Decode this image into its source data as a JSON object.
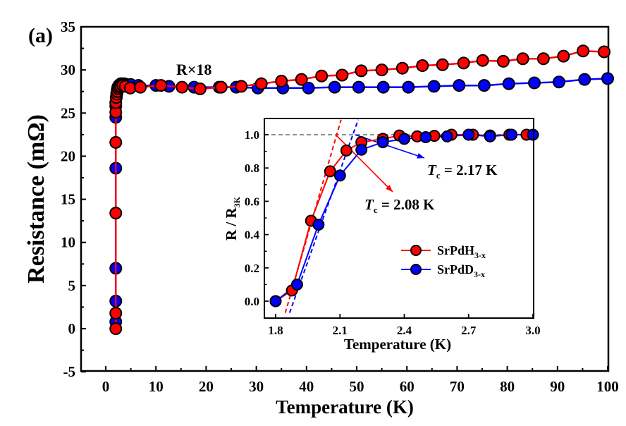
{
  "panel_label": "(a)",
  "colors": {
    "red": "#ff0000",
    "blue": "#0000ff",
    "gray": "#808080",
    "marker_edge": "#000000"
  },
  "chart_data": [
    {
      "type": "line",
      "title": "",
      "xlabel": "Temperature (K)",
      "ylabel": "Resistance (mΩ)",
      "xlim": [
        -5,
        100
      ],
      "ylim": [
        -5,
        35
      ],
      "xticks": [
        "0",
        "10",
        "20",
        "30",
        "40",
        "50",
        "60",
        "70",
        "80",
        "90",
        "100"
      ],
      "yticks": [
        "-5",
        "0",
        "5",
        "10",
        "15",
        "20",
        "25",
        "30",
        "35"
      ],
      "annotation": "R×18",
      "series": [
        {
          "name": "SrPdD3-x (R×18)",
          "color": "blue",
          "x": [
            2.0,
            2.0,
            2.0,
            2.0,
            2.0,
            2.0,
            2.1,
            2.2,
            2.3,
            2.4,
            2.6,
            2.8,
            3.0,
            3.3,
            3.7,
            4.2,
            5.0,
            6.5,
            10.0,
            12.6,
            17.6,
            22.6,
            26.0,
            30.3,
            35.3,
            40.4,
            45.6,
            50.4,
            55.3,
            60.3,
            65.4,
            70.4,
            75.4,
            80.3,
            85.4,
            90.3,
            95.4,
            100.0
          ],
          "y": [
            0.8,
            3.2,
            7.0,
            18.6,
            24.5,
            25.8,
            26.8,
            27.3,
            27.7,
            28.0,
            28.2,
            28.3,
            28.4,
            28.4,
            28.4,
            28.3,
            28.3,
            28.2,
            28.2,
            28.1,
            28.0,
            28.0,
            28.0,
            27.9,
            27.9,
            27.9,
            28.0,
            28.0,
            28.0,
            28.0,
            28.1,
            28.2,
            28.2,
            28.4,
            28.5,
            28.6,
            28.9,
            29.0
          ]
        },
        {
          "name": "SrPdH3-x",
          "color": "red",
          "x": [
            2.0,
            2.0,
            2.0,
            2.0,
            2.0,
            2.0,
            2.1,
            2.2,
            2.3,
            2.5,
            2.7,
            3.0,
            3.4,
            3.9,
            4.9,
            6.9,
            11.0,
            15.2,
            18.8,
            23.0,
            27.0,
            31.0,
            35.0,
            39.0,
            43.0,
            47.1,
            50.9,
            55.0,
            59.1,
            63.1,
            67.1,
            71.3,
            75.1,
            79.2,
            83.1,
            87.2,
            91.2,
            95.1,
            99.3
          ],
          "y": [
            0.0,
            1.8,
            13.4,
            21.6,
            25.1,
            26.2,
            26.8,
            27.2,
            27.5,
            27.8,
            28.0,
            28.1,
            28.2,
            28.1,
            27.9,
            28.0,
            28.2,
            28.0,
            27.8,
            28.0,
            28.1,
            28.4,
            28.7,
            28.9,
            29.3,
            29.4,
            29.9,
            30.0,
            30.2,
            30.5,
            30.6,
            30.8,
            31.1,
            31.0,
            31.3,
            31.3,
            31.6,
            32.2,
            32.1
          ]
        }
      ]
    },
    {
      "type": "line",
      "title": "",
      "xlabel": "Temperature (K)",
      "ylabel": "R / R",
      "ylabel_sub": "3K",
      "xlim": [
        1.75,
        3.0
      ],
      "ylim": [
        -0.08,
        1.09
      ],
      "xticks": [
        "1.8",
        "2.1",
        "2.4",
        "2.7",
        "3.0"
      ],
      "yticks": [
        "0.0",
        "0.2",
        "0.4",
        "0.6",
        "0.8",
        "1.0"
      ],
      "legend": {
        "position": "lower-right",
        "entries": [
          {
            "base": "SrPdH",
            "sub": "3-x",
            "color": "red"
          },
          {
            "base": "SrPdD",
            "sub": "3-x",
            "color": "blue"
          }
        ]
      },
      "annotations": [
        {
          "symbol": "T",
          "sub": "c",
          "text": " = 2.08 K",
          "color": "red",
          "tc": 2.08
        },
        {
          "symbol": "T",
          "sub": "c",
          "text": " = 2.17 K",
          "color": "blue",
          "tc": 2.17
        }
      ],
      "reference_line": 1.0,
      "fit_lines": [
        {
          "color": "red",
          "x": [
            1.845,
            2.105
          ],
          "y": [
            -0.07,
            1.09
          ]
        },
        {
          "color": "blue",
          "x": [
            1.865,
            2.185
          ],
          "y": [
            -0.07,
            1.09
          ]
        }
      ],
      "series": [
        {
          "name": "SrPdH3-x",
          "color": "red",
          "x": [
            1.8,
            1.876,
            1.965,
            2.054,
            2.13,
            2.2,
            2.3,
            2.377,
            2.46,
            2.54,
            2.62,
            2.72,
            2.8,
            2.89,
            2.97
          ],
          "y": [
            0.0,
            0.064,
            0.483,
            0.78,
            0.905,
            0.955,
            0.975,
            0.995,
            0.99,
            0.993,
            1.0,
            1.0,
            0.995,
            1.0,
            1.0
          ]
        },
        {
          "name": "SrPdD3-x",
          "color": "blue",
          "x": [
            1.8,
            1.9,
            2.0,
            2.1,
            2.2,
            2.3,
            2.4,
            2.5,
            2.6,
            2.7,
            2.8,
            2.9,
            3.0
          ],
          "y": [
            0.0,
            0.1,
            0.46,
            0.755,
            0.91,
            0.955,
            0.975,
            0.985,
            0.99,
            1.0,
            0.99,
            1.0,
            1.0
          ]
        }
      ]
    }
  ]
}
